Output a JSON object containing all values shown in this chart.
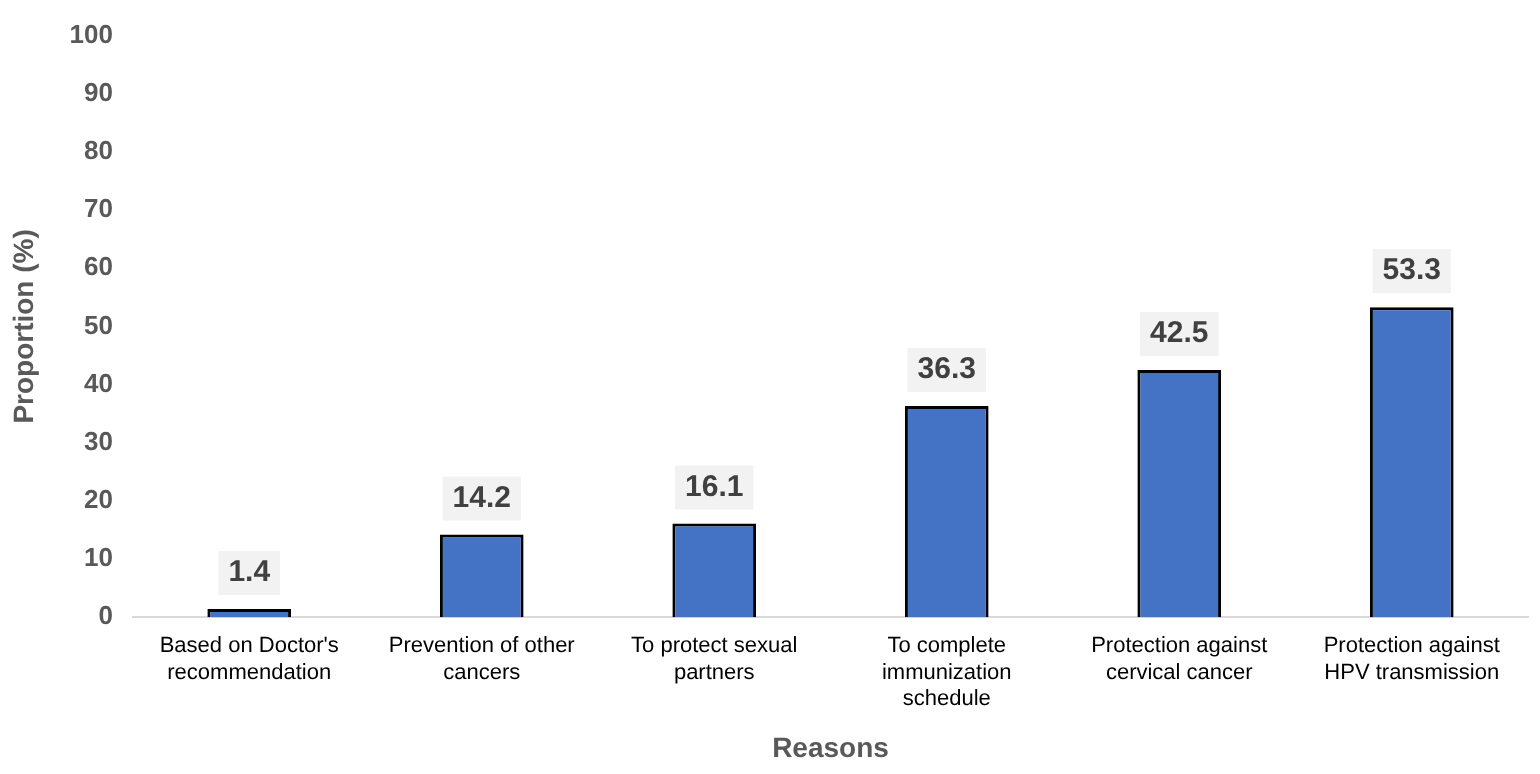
{
  "chart_data": {
    "type": "bar",
    "xlabel": "Reasons",
    "ylabel": "Proportion (%)",
    "categories": [
      "Based on Doctor's recommendation",
      "Prevention of other cancers",
      "To protect sexual partners",
      "To complete immunization schedule",
      "Protection against cervical cancer",
      "Protection against HPV transmission"
    ],
    "values": [
      1.4,
      14.2,
      16.1,
      36.3,
      42.5,
      53.3
    ],
    "color": "#4472c4",
    "ylim": [
      0,
      100
    ],
    "yticks": [
      0,
      10,
      20,
      30,
      40,
      50,
      60,
      70,
      80,
      90,
      100
    ],
    "grid": false,
    "data_labels": true
  }
}
